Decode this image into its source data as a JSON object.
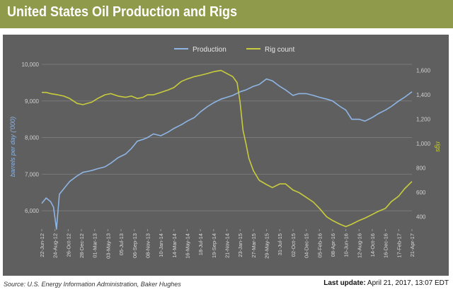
{
  "header": {
    "title": "United States Oil Production and Rigs"
  },
  "footer": {
    "source": "Source: U.S. Energy Information Administration, Baker Hughes",
    "last_update_label": "Last update:",
    "last_update_value": "April 21, 2017, 13:07 EDT"
  },
  "colors": {
    "production": "#8eb4e3",
    "rig_count": "#c8cc3c",
    "panel": "#5f5f5f",
    "title_bar": "#8f9a4b"
  },
  "chart_data": {
    "type": "line",
    "title": "",
    "legend_position": "top-center",
    "grid": true,
    "x_tick_labels": [
      "22-Jun-12",
      "24-Aug-12",
      "26-Oct-12",
      "28-Dec-12",
      "01-Mar-13",
      "03-May-13",
      "05-Jul-13",
      "06-Sep-13",
      "08-Nov-13",
      "10-Jan-14",
      "14-Mar-14",
      "16-May-14",
      "18-Jul-14",
      "19-Sep-14",
      "21-Nov-14",
      "23-Jan-15",
      "27-Mar-15",
      "29-May-15",
      "31-Jul-15",
      "02-Oct-15",
      "04-Dec-15",
      "05-Feb-16",
      "08-Apr-16",
      "10-Jun-16",
      "12-Aug-16",
      "14-Oct-16",
      "16-Dec-16",
      "17-Feb-17",
      "21-Apr-17"
    ],
    "y_left": {
      "label": "barrels per day ('000)",
      "ticks": [
        "6,000",
        "7,000",
        "8,000",
        "9,000",
        "10,000"
      ],
      "range": [
        5500,
        10000
      ]
    },
    "y_right": {
      "label": "rigs",
      "ticks": [
        "400",
        "600",
        "800",
        "1,000",
        "1,200",
        "1,400",
        "1,600"
      ],
      "range": [
        300,
        1650
      ]
    },
    "series": [
      {
        "name": "Production",
        "axis": "left",
        "x": [
          "2012-06-22",
          "2012-07-13",
          "2012-08-03",
          "2012-08-17",
          "2012-08-31",
          "2012-09-14",
          "2012-10-05",
          "2012-11-02",
          "2012-12-07",
          "2013-01-04",
          "2013-02-15",
          "2013-03-15",
          "2013-04-19",
          "2013-05-17",
          "2013-06-21",
          "2013-07-26",
          "2013-08-23",
          "2013-09-20",
          "2013-10-18",
          "2013-11-08",
          "2013-12-06",
          "2014-01-10",
          "2014-02-14",
          "2014-03-14",
          "2014-04-18",
          "2014-05-16",
          "2014-06-20",
          "2014-07-18",
          "2014-08-22",
          "2014-09-19",
          "2014-10-24",
          "2014-11-21",
          "2014-12-19",
          "2015-01-23",
          "2015-02-20",
          "2015-03-27",
          "2015-04-24",
          "2015-05-29",
          "2015-06-26",
          "2015-07-31",
          "2015-08-28",
          "2015-10-02",
          "2015-10-30",
          "2015-12-04",
          "2016-01-08",
          "2016-02-05",
          "2016-03-11",
          "2016-04-08",
          "2016-05-13",
          "2016-06-10",
          "2016-07-08",
          "2016-08-12",
          "2016-09-09",
          "2016-10-14",
          "2016-11-11",
          "2016-12-16",
          "2017-01-13",
          "2017-02-17",
          "2017-03-17",
          "2017-04-21"
        ],
        "values": [
          6200,
          6350,
          6250,
          6100,
          5500,
          6450,
          6600,
          6800,
          6950,
          7050,
          7100,
          7150,
          7200,
          7300,
          7450,
          7550,
          7700,
          7900,
          7950,
          8000,
          8100,
          8050,
          8150,
          8250,
          8350,
          8450,
          8550,
          8700,
          8850,
          8950,
          9050,
          9100,
          9150,
          9250,
          9300,
          9400,
          9450,
          9600,
          9550,
          9400,
          9300,
          9150,
          9200,
          9200,
          9150,
          9100,
          9050,
          9000,
          8850,
          8750,
          8500,
          8500,
          8450,
          8550,
          8650,
          8750,
          8850,
          9000,
          9100,
          9250
        ]
      },
      {
        "name": "Rig count",
        "axis": "right",
        "x": [
          "2012-06-22",
          "2012-07-13",
          "2012-08-03",
          "2012-09-07",
          "2012-10-05",
          "2012-11-02",
          "2012-12-07",
          "2013-01-04",
          "2013-02-15",
          "2013-03-15",
          "2013-04-19",
          "2013-05-17",
          "2013-06-21",
          "2013-07-26",
          "2013-08-23",
          "2013-09-20",
          "2013-10-18",
          "2013-11-08",
          "2013-12-06",
          "2014-01-10",
          "2014-02-14",
          "2014-03-14",
          "2014-04-18",
          "2014-05-16",
          "2014-06-20",
          "2014-07-18",
          "2014-08-22",
          "2014-09-19",
          "2014-10-24",
          "2014-11-21",
          "2014-12-19",
          "2015-01-09",
          "2015-01-23",
          "2015-02-06",
          "2015-02-20",
          "2015-03-06",
          "2015-03-27",
          "2015-04-24",
          "2015-05-29",
          "2015-06-26",
          "2015-07-31",
          "2015-08-28",
          "2015-10-02",
          "2015-10-30",
          "2015-12-04",
          "2016-01-08",
          "2016-02-05",
          "2016-03-11",
          "2016-04-08",
          "2016-05-13",
          "2016-06-10",
          "2016-07-08",
          "2016-08-12",
          "2016-09-09",
          "2016-10-14",
          "2016-11-11",
          "2016-12-16",
          "2017-01-13",
          "2017-02-17",
          "2017-03-17",
          "2017-04-21"
        ],
        "values": [
          1420,
          1420,
          1410,
          1400,
          1390,
          1370,
          1330,
          1320,
          1340,
          1370,
          1400,
          1410,
          1390,
          1380,
          1390,
          1370,
          1380,
          1400,
          1400,
          1420,
          1440,
          1460,
          1510,
          1530,
          1550,
          1560,
          1575,
          1590,
          1600,
          1575,
          1550,
          1500,
          1340,
          1110,
          1000,
          880,
          780,
          700,
          665,
          640,
          670,
          670,
          620,
          600,
          560,
          520,
          470,
          400,
          370,
          340,
          320,
          340,
          370,
          390,
          420,
          445,
          470,
          525,
          570,
          630,
          690
        ]
      }
    ]
  }
}
